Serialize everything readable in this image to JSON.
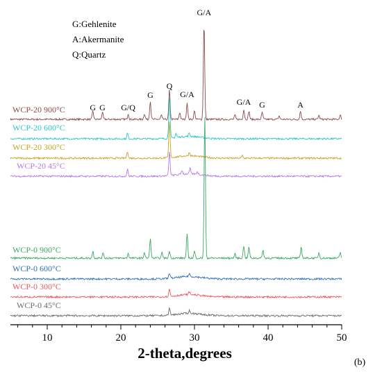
{
  "chart_data": {
    "type": "line",
    "xlabel": "2-theta,degrees",
    "ylabel": "",
    "xlim": [
      5,
      50
    ],
    "x_ticks": [
      10,
      20,
      30,
      40,
      50
    ],
    "panel_label": "(b)",
    "legend": {
      "placement": "top-left",
      "entries": [
        "G:Gehlenite",
        "A:Akermanite",
        "Q:Quartz"
      ]
    },
    "peak_labels": [
      {
        "text": "G",
        "x": 16.2,
        "series": "WCP-20 900°C"
      },
      {
        "text": "G",
        "x": 17.5,
        "series": "WCP-20 900°C"
      },
      {
        "text": "G/Q",
        "x": 21.0,
        "series": "WCP-20 900°C"
      },
      {
        "text": "G",
        "x": 24.0,
        "series": "WCP-20 900°C"
      },
      {
        "text": "Q",
        "x": 26.6,
        "series": "WCP-20 900°C"
      },
      {
        "text": "G/A",
        "x": 29.0,
        "series": "WCP-20 900°C"
      },
      {
        "text": "G/A",
        "x": 31.3,
        "series": "WCP-20 900°C"
      },
      {
        "text": "G/A",
        "x": 36.7,
        "series": "WCP-20 900°C"
      },
      {
        "text": "G",
        "x": 39.2,
        "series": "WCP-20 900°C"
      },
      {
        "text": "A",
        "x": 44.4,
        "series": "WCP-20 900°C"
      }
    ],
    "series": [
      {
        "name": "WCP-20 900°C",
        "color": "#8b4a4a",
        "peaks": [
          [
            16.2,
            12
          ],
          [
            17.5,
            10
          ],
          [
            21.0,
            8
          ],
          [
            23.2,
            8
          ],
          [
            24.0,
            26
          ],
          [
            25.5,
            6
          ],
          [
            26.6,
            42
          ],
          [
            28.0,
            10
          ],
          [
            29.0,
            24
          ],
          [
            30.0,
            12
          ],
          [
            31.3,
            140
          ],
          [
            35.5,
            6
          ],
          [
            36.7,
            14
          ],
          [
            37.4,
            12
          ],
          [
            39.2,
            10
          ],
          [
            41.5,
            5
          ],
          [
            44.4,
            12
          ],
          [
            46.9,
            6
          ],
          [
            49.8,
            6
          ]
        ]
      },
      {
        "name": "WCP-20 600°C",
        "color": "#2cc7c7",
        "peaks": [
          [
            20.9,
            8
          ],
          [
            26.6,
            60
          ],
          [
            27.5,
            6
          ],
          [
            29.3,
            5
          ]
        ]
      },
      {
        "name": "WCP-20 300°C",
        "color": "#c9a227",
        "peaks": [
          [
            20.9,
            10
          ],
          [
            26.6,
            52
          ],
          [
            29.3,
            5
          ],
          [
            36.5,
            4
          ]
        ]
      },
      {
        "name": "WCP-20 45°C",
        "color": "#b678e6",
        "peaks": [
          [
            20.9,
            10
          ],
          [
            26.6,
            34
          ],
          [
            28.3,
            6
          ],
          [
            29.4,
            8
          ],
          [
            30.4,
            4
          ]
        ]
      },
      {
        "name": "WCP-0 900°C",
        "color": "#3aa860",
        "peaks": [
          [
            16.2,
            10
          ],
          [
            17.6,
            8
          ],
          [
            21.0,
            7
          ],
          [
            23.2,
            8
          ],
          [
            24.0,
            28
          ],
          [
            25.6,
            8
          ],
          [
            26.6,
            10
          ],
          [
            29.0,
            34
          ],
          [
            30.0,
            10
          ],
          [
            31.4,
            205
          ],
          [
            35.5,
            6
          ],
          [
            36.7,
            18
          ],
          [
            37.4,
            16
          ],
          [
            39.3,
            12
          ],
          [
            44.5,
            16
          ],
          [
            46.9,
            8
          ],
          [
            49.8,
            8
          ]
        ]
      },
      {
        "name": "WCP-0 600°C",
        "color": "#2f6fb8",
        "peaks": [
          [
            26.6,
            8
          ],
          [
            29.3,
            4
          ]
        ]
      },
      {
        "name": "WCP-0 300°C",
        "color": "#e8585e",
        "peaks": [
          [
            26.6,
            10
          ],
          [
            29.3,
            4
          ]
        ]
      },
      {
        "name": "WCP-0 45°C",
        "color": "#6b6b6b",
        "peaks": [
          [
            26.6,
            10
          ],
          [
            29.3,
            4
          ]
        ]
      }
    ]
  }
}
